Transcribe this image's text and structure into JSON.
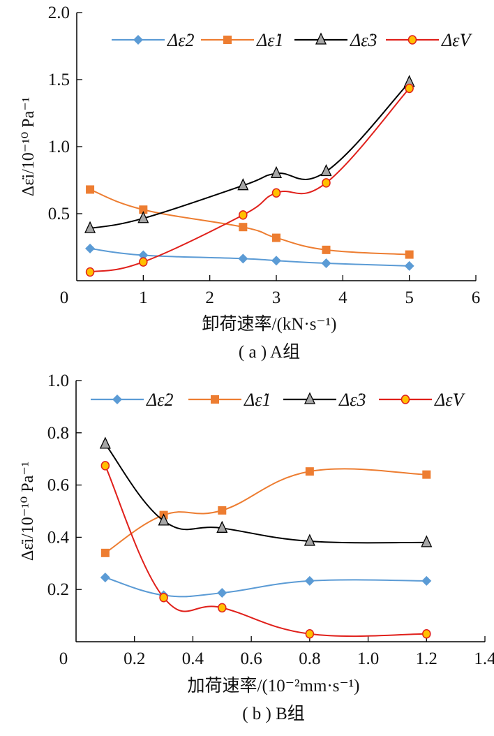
{
  "colors": {
    "e2": "#5b9bd5",
    "e1": "#ed7d31",
    "e3": "#000000",
    "eV": "#e0201b",
    "eV_marker_fill": "#ffc000",
    "e3_marker_fill": "#a6a6a6"
  },
  "chart_data": [
    {
      "type": "line",
      "caption": "( a ) A组",
      "xlabel": "卸荷速率/(kN·s⁻¹)",
      "ylabel": "Δε̇i/10⁻¹⁰ Pa⁻¹",
      "xlim": [
        0,
        6
      ],
      "ylim": [
        0,
        2.0
      ],
      "xticks": [
        "0",
        "1",
        "2",
        "3",
        "4",
        "5",
        "6"
      ],
      "yticks": [
        "0.5",
        "1.0",
        "1.5",
        "2.0"
      ],
      "x": [
        0.2,
        1,
        2.5,
        3,
        3.75,
        5
      ],
      "legend_position": "top",
      "grid": false,
      "series": [
        {
          "key": "e2",
          "name": "Δε̇2",
          "marker": "diamond",
          "values": [
            0.24,
            0.19,
            0.165,
            0.15,
            0.13,
            0.11
          ]
        },
        {
          "key": "e1",
          "name": "Δε̇1",
          "marker": "square",
          "values": [
            0.68,
            0.53,
            0.4,
            0.32,
            0.23,
            0.195
          ]
        },
        {
          "key": "e3",
          "name": "Δε̇3",
          "marker": "triangle",
          "values": [
            0.39,
            0.465,
            0.71,
            0.8,
            0.815,
            1.48
          ]
        },
        {
          "key": "eV",
          "name": "Δε̇V",
          "marker": "circle",
          "values": [
            0.065,
            0.14,
            0.49,
            0.655,
            0.73,
            1.435
          ]
        }
      ]
    },
    {
      "type": "line",
      "caption": "( b ) B组",
      "xlabel": "加荷速率/(10⁻²mm·s⁻¹)",
      "ylabel": "Δε̇i/10⁻¹⁰ Pa⁻¹",
      "xlim": [
        0,
        1.4
      ],
      "ylim": [
        0,
        1.0
      ],
      "xticks": [
        "0",
        "0.2",
        "0.4",
        "0.6",
        "0.8",
        "1.0",
        "1.2",
        "1.4"
      ],
      "yticks": [
        "0.2",
        "0.4",
        "0.6",
        "0.8",
        "1.0"
      ],
      "x": [
        0.1,
        0.3,
        0.5,
        0.8,
        1.2
      ],
      "legend_position": "top",
      "grid": false,
      "series": [
        {
          "key": "e2",
          "name": "Δε̇2",
          "marker": "diamond",
          "values": [
            0.246,
            0.178,
            0.187,
            0.233,
            0.233
          ]
        },
        {
          "key": "e1",
          "name": "Δε̇1",
          "marker": "square",
          "values": [
            0.34,
            0.485,
            0.503,
            0.652,
            0.64
          ]
        },
        {
          "key": "e3",
          "name": "Δε̇3",
          "marker": "triangle",
          "values": [
            0.757,
            0.463,
            0.435,
            0.385,
            0.38
          ]
        },
        {
          "key": "eV",
          "name": "Δε̇V",
          "marker": "circle",
          "values": [
            0.674,
            0.169,
            0.13,
            0.03,
            0.03
          ]
        }
      ]
    }
  ]
}
